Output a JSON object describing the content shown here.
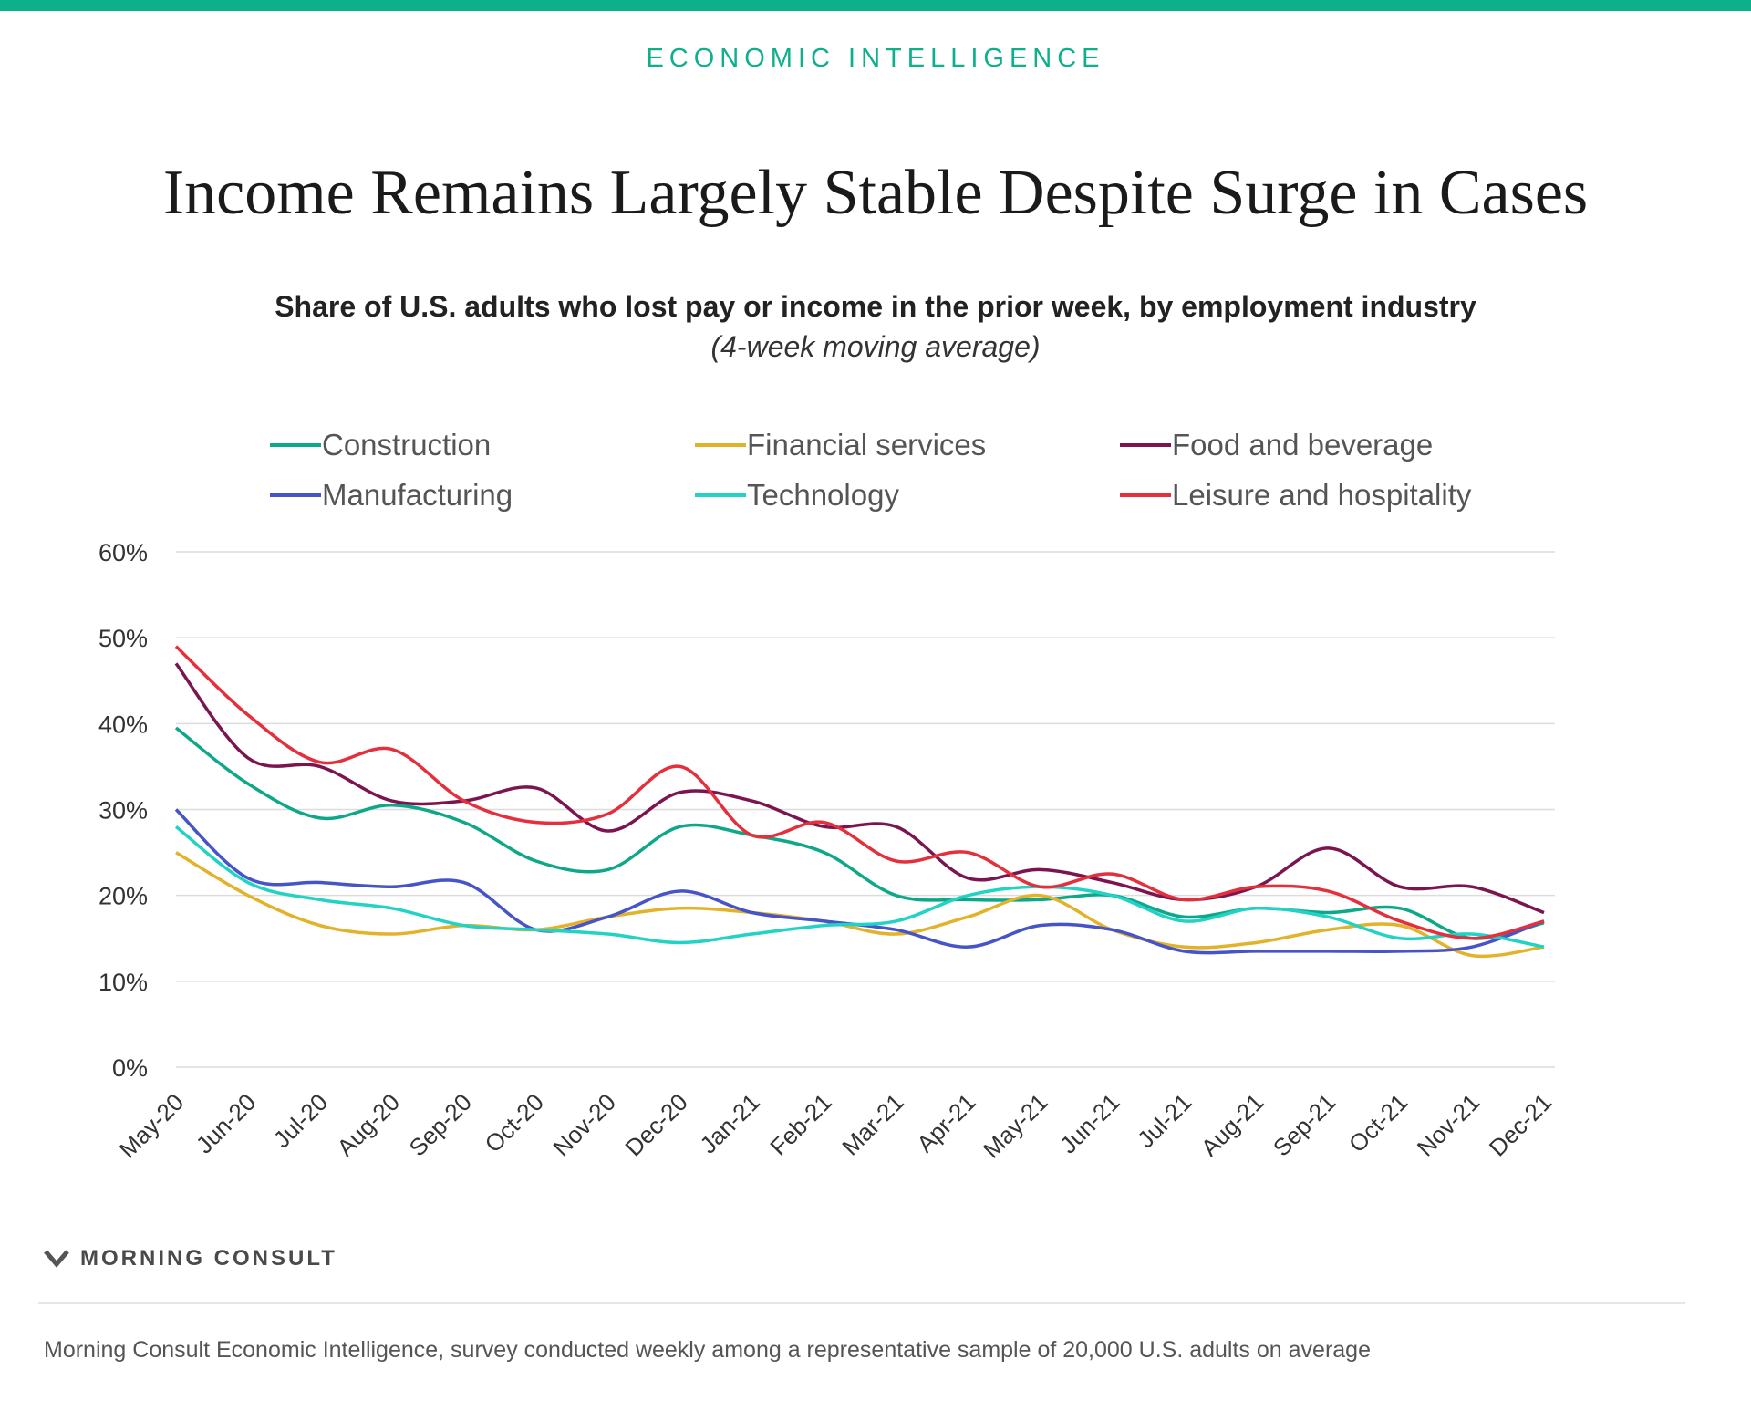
{
  "header": {
    "eyebrow": "ECONOMIC INTELLIGENCE",
    "title": "Income Remains Largely Stable Despite Surge in Cases",
    "subtitle": "Share of U.S. adults who lost pay or income in the prior week, by employment industry",
    "subtitle_note": "(4-week moving average)"
  },
  "brand": {
    "name": "MORNING CONSULT",
    "logo_icon": "mc-chevron-logo"
  },
  "footnote": "Morning Consult Economic Intelligence, survey conducted weekly among a representative sample of 20,000 U.S. adults on average",
  "colors": {
    "accent": "#0db08b",
    "construction": "#0ea888",
    "financial": "#e3b22b",
    "food": "#7a1550",
    "manufacturing": "#4654c8",
    "technology": "#22d3c5",
    "leisure": "#e4303c"
  },
  "chart_data": {
    "type": "line",
    "x": [
      "May-20",
      "Jun-20",
      "Jul-20",
      "Aug-20",
      "Sep-20",
      "Oct-20",
      "Nov-20",
      "Dec-20",
      "Jan-21",
      "Feb-21",
      "Mar-21",
      "Apr-21",
      "May-21",
      "Jun-21",
      "Jul-21",
      "Aug-21",
      "Sep-21",
      "Oct-21",
      "Nov-21",
      "Dec-21"
    ],
    "ylim": [
      0,
      60
    ],
    "yticks": [
      0,
      10,
      20,
      30,
      40,
      50,
      60
    ],
    "ytick_labels": [
      "0%",
      "10%",
      "20%",
      "30%",
      "40%",
      "50%",
      "60%"
    ],
    "grid": true,
    "legend_position": "top",
    "series": [
      {
        "name": "Construction",
        "color": "#0ea888",
        "values": [
          39.5,
          33,
          29,
          30.5,
          28.5,
          24,
          23,
          28,
          27,
          25,
          20,
          19.5,
          19.5,
          20,
          17.5,
          18.5,
          18,
          18.5,
          15,
          16.8
        ]
      },
      {
        "name": "Financial services",
        "color": "#e3b22b",
        "values": [
          25,
          20,
          16.5,
          15.5,
          16.5,
          16,
          17.5,
          18.5,
          18,
          17,
          15.5,
          17.5,
          20,
          16,
          14,
          14.5,
          16,
          16.5,
          13,
          14
        ]
      },
      {
        "name": "Food and beverage",
        "color": "#7a1550",
        "values": [
          47,
          36,
          35,
          31,
          31,
          32.5,
          27.5,
          32,
          31,
          28,
          28,
          22,
          23,
          21.5,
          19.5,
          21,
          25.5,
          21,
          21,
          18
        ]
      },
      {
        "name": "Manufacturing",
        "color": "#4654c8",
        "values": [
          30,
          22,
          21.5,
          21,
          21.5,
          16,
          17.5,
          20.5,
          18,
          17,
          16,
          14,
          16.5,
          16,
          13.5,
          13.5,
          13.5,
          13.5,
          14,
          17
        ]
      },
      {
        "name": "Technology",
        "color": "#22d3c5",
        "values": [
          28,
          21.5,
          19.5,
          18.5,
          16.5,
          16,
          15.5,
          14.5,
          15.5,
          16.5,
          17,
          20,
          21,
          20,
          17,
          18.5,
          17.5,
          15,
          15.5,
          14
        ]
      },
      {
        "name": "Leisure and hospitality",
        "color": "#e4303c",
        "values": [
          49,
          41,
          35.5,
          37,
          31,
          28.5,
          29.5,
          35,
          27,
          28.5,
          24,
          25,
          21,
          22.5,
          19.5,
          21,
          20.5,
          17,
          15,
          17
        ]
      }
    ]
  }
}
